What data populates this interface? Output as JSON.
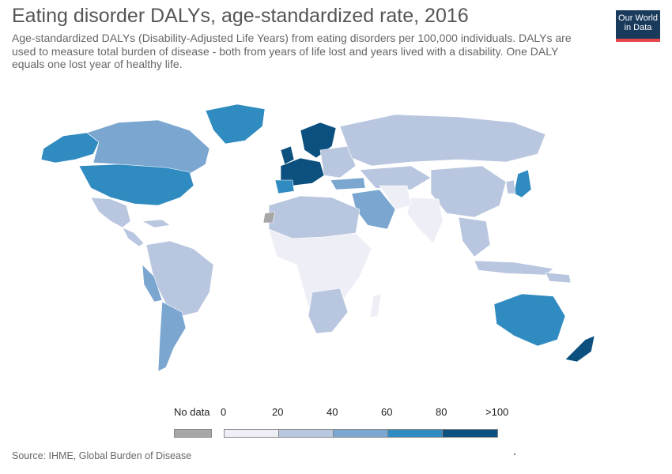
{
  "title": "Eating disorder DALYs, age-standardized rate, 2016",
  "subtitle": "Age-standardized DALYs (Disability-Adjusted Life Years) from eating disorders per 100,000 individuals. DALYs are used to measure total burden of disease - both from years of life lost and years lived with a disability. One DALY equals one lost year of healthy life.",
  "logo": {
    "line1": "Our World",
    "line2": "in Data"
  },
  "legend": {
    "no_data_label": "No data",
    "ticks": [
      "0",
      "20",
      "40",
      "60",
      "80",
      ">100"
    ],
    "colors": {
      "no_data": "#a7a7a7",
      "bin_0_20": "#eeeef6",
      "bin_20_40": "#b9c6df",
      "bin_40_60": "#7aa6d0",
      "bin_60_80": "#2f8bc0",
      "bin_80_100": "#0c507f"
    }
  },
  "source": "Source: IHME, Global Burden of Disease"
}
